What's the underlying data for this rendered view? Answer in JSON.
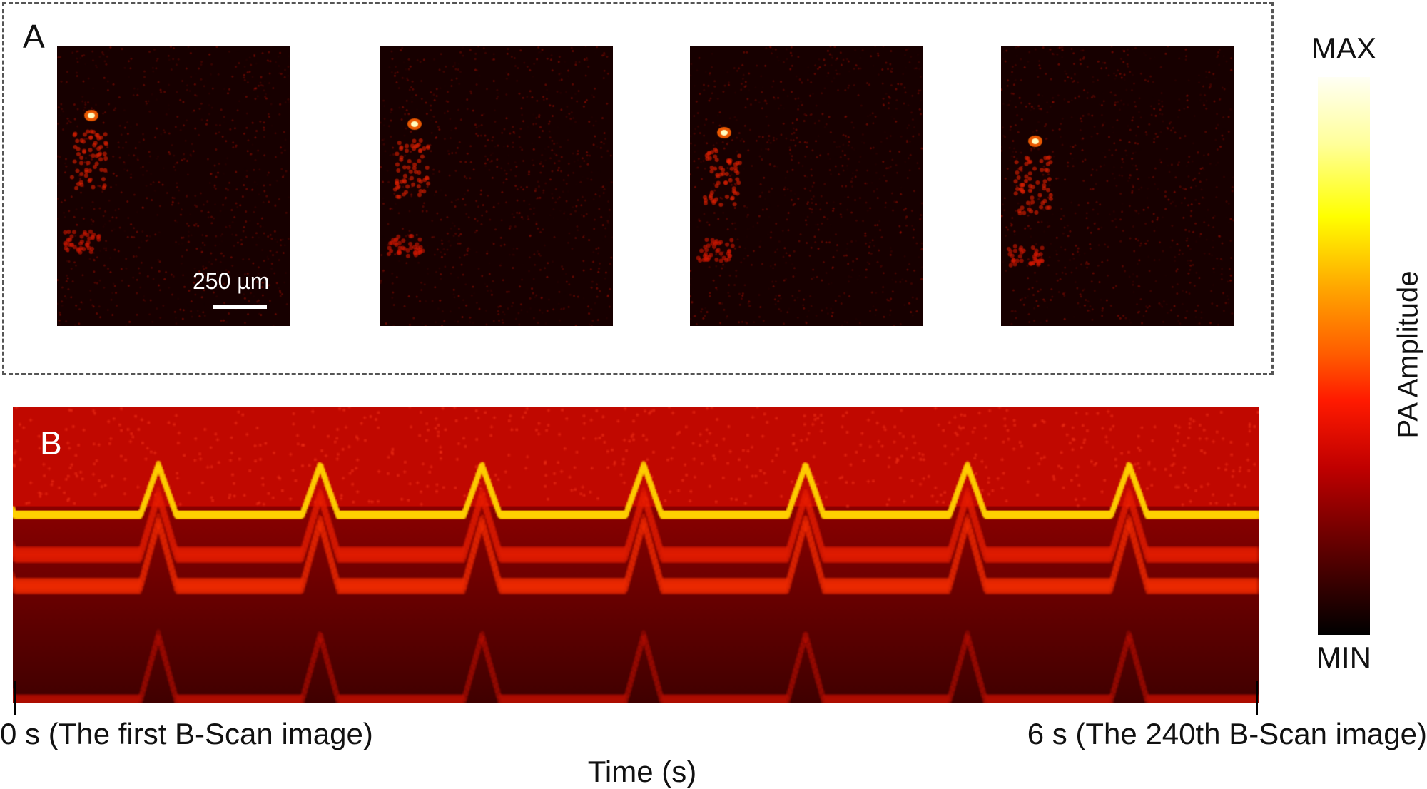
{
  "panel_a": {
    "label": "A",
    "scale_bar": "250 µm",
    "frames": 4
  },
  "panel_b": {
    "label": "B",
    "start_label": "0 s (The first B-Scan image)",
    "end_label": "6 s (The 240th B-Scan image)",
    "x_axis_title": "Time (s)"
  },
  "colorbar": {
    "max_label": "MAX",
    "min_label": "MIN",
    "title": "PA Amplitude"
  },
  "colors": {
    "accent": "#ff2000",
    "background_dark": "#1a0000"
  }
}
